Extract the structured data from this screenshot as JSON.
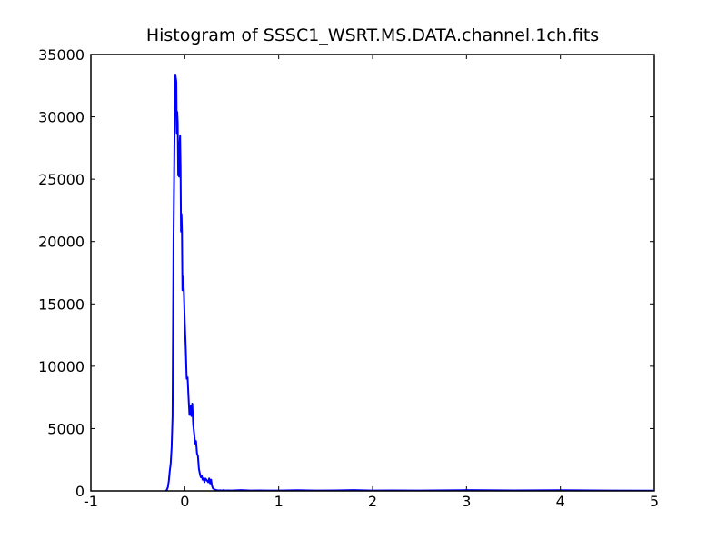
{
  "chart_data": {
    "type": "line",
    "title": "Histogram of SSSC1_WSRT.MS.DATA.channel.1ch.fits",
    "xlabel": "",
    "ylabel": "",
    "xlim": [
      -1,
      5
    ],
    "ylim": [
      0,
      35000
    ],
    "grid": false,
    "legend": "none",
    "x_ticks": [
      -1,
      0,
      1,
      2,
      3,
      4,
      5
    ],
    "x_tick_labels": [
      "-1",
      "0",
      "1",
      "2",
      "3",
      "4",
      "5"
    ],
    "y_ticks": [
      0,
      5000,
      10000,
      15000,
      20000,
      25000,
      30000,
      35000
    ],
    "y_tick_labels": [
      "0",
      "5000",
      "10000",
      "15000",
      "20000",
      "25000",
      "30000",
      "35000"
    ],
    "series": [
      {
        "color": "#0000ff",
        "x": [
          -0.2,
          -0.19,
          -0.18,
          -0.17,
          -0.16,
          -0.15,
          -0.14,
          -0.13,
          -0.12,
          -0.11,
          -0.1,
          -0.09,
          -0.085,
          -0.08,
          -0.075,
          -0.07,
          -0.065,
          -0.06,
          -0.055,
          -0.05,
          -0.045,
          -0.04,
          -0.035,
          -0.03,
          -0.025,
          -0.02,
          -0.01,
          0.0,
          0.01,
          0.02,
          0.03,
          0.04,
          0.05,
          0.06,
          0.07,
          0.08,
          0.09,
          0.1,
          0.11,
          0.12,
          0.13,
          0.14,
          0.15,
          0.16,
          0.17,
          0.18,
          0.19,
          0.2,
          0.21,
          0.22,
          0.23,
          0.24,
          0.25,
          0.26,
          0.27,
          0.28,
          0.29,
          0.3,
          0.31,
          0.32,
          0.33,
          0.34,
          0.35,
          0.36,
          0.37,
          0.38,
          0.39,
          0.4,
          0.41,
          0.43,
          0.46,
          0.5,
          0.6,
          0.7,
          0.8,
          0.9,
          1.0,
          1.2,
          1.4,
          1.6,
          1.8,
          2.0,
          2.2,
          2.5,
          3.0,
          3.5,
          4.0,
          4.5,
          5.0
        ],
        "y": [
          0,
          100,
          300,
          800,
          1600,
          2200,
          3500,
          6000,
          20000,
          28000,
          33400,
          32800,
          28700,
          30400,
          29500,
          25300,
          27200,
          25200,
          27800,
          28500,
          26000,
          20800,
          22200,
          20800,
          16100,
          17200,
          16000,
          13500,
          11500,
          9000,
          9100,
          7500,
          6100,
          6800,
          6000,
          7000,
          5300,
          4600,
          3800,
          4000,
          3000,
          2800,
          1800,
          1400,
          1100,
          1200,
          900,
          1000,
          700,
          1000,
          900,
          800,
          700,
          1000,
          600,
          900,
          400,
          200,
          150,
          100,
          80,
          60,
          50,
          40,
          30,
          50,
          30,
          40,
          60,
          30,
          40,
          30,
          60,
          30,
          40,
          30,
          30,
          50,
          30,
          40,
          60,
          30,
          40,
          30,
          60,
          40,
          50,
          30,
          20
        ]
      }
    ]
  }
}
